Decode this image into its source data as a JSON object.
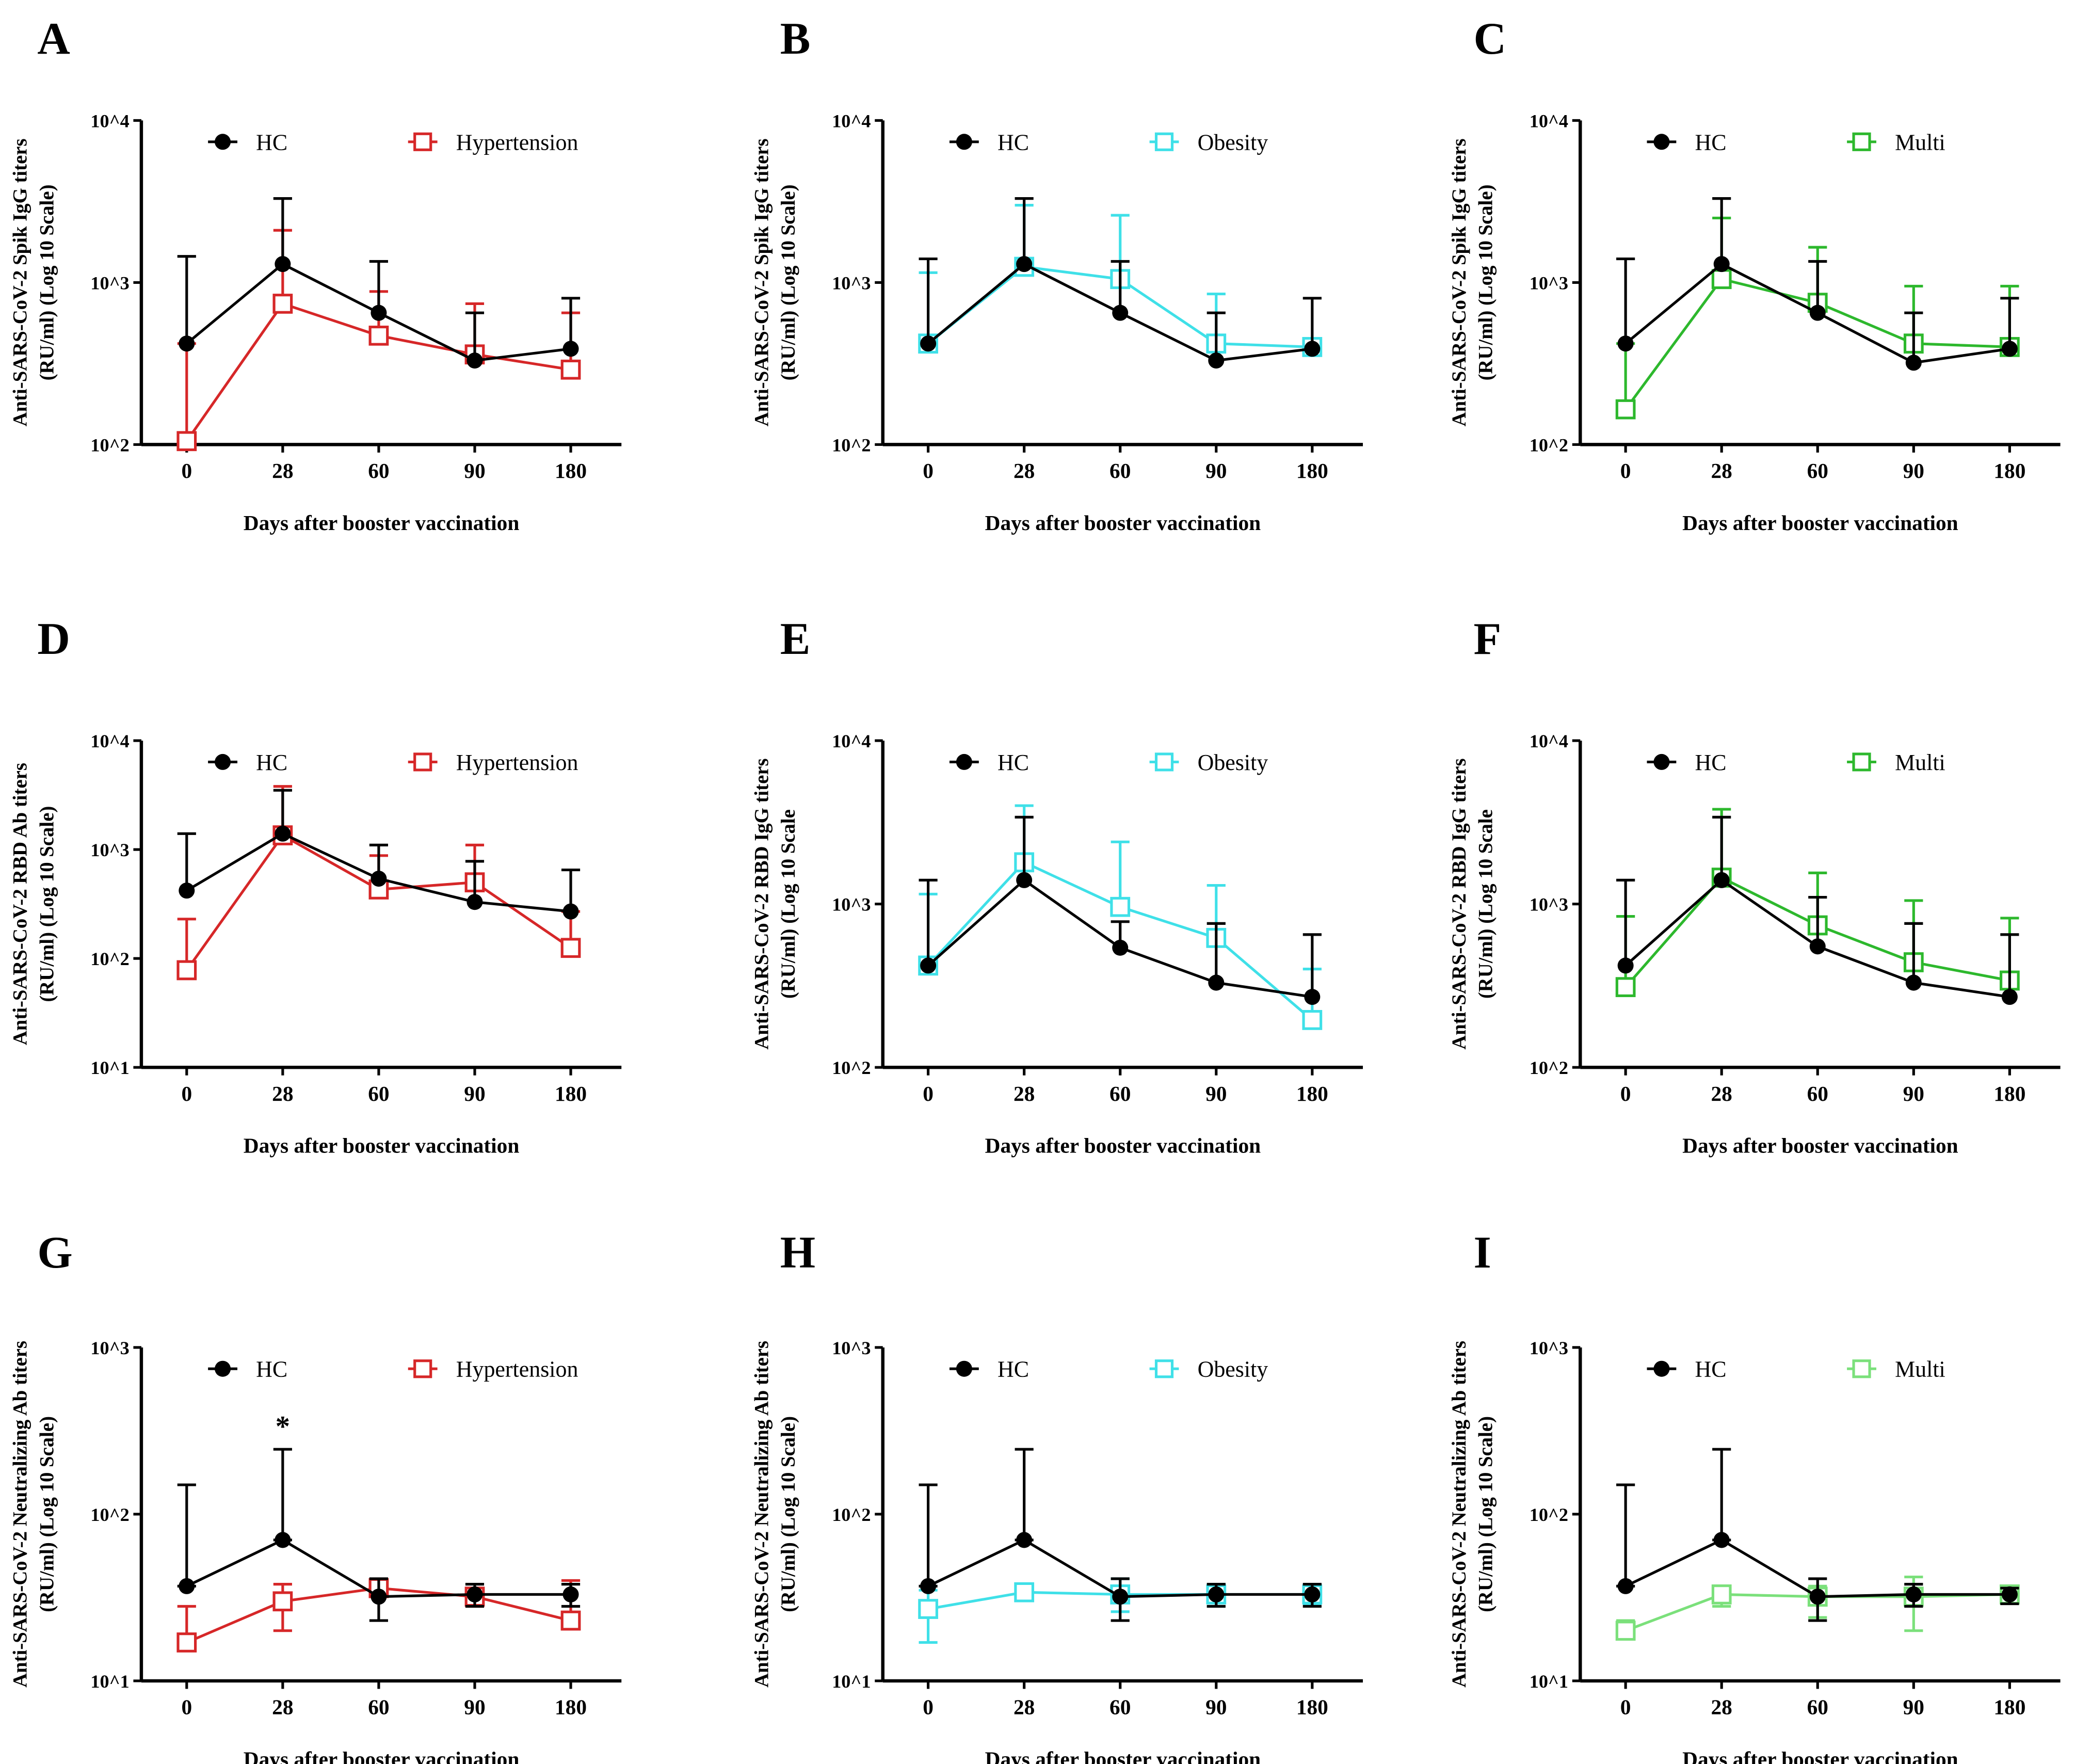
{
  "chart_data": [
    {
      "panel": "A",
      "type": "line",
      "y_scale": "log",
      "ylim": [
        100,
        10000
      ],
      "ytick_labels": [
        "10^2",
        "10^3",
        "10^4"
      ],
      "categories": [
        "0",
        "28",
        "60",
        "90",
        "180"
      ],
      "xlabel": "Days after booster vaccination",
      "ylabel": [
        "Anti-SARS-CoV-2 Spik IgG titers",
        "(RU/ml) (Log 10 Scale)"
      ],
      "legend": "top",
      "series": [
        {
          "name": "HC",
          "marker": "circle",
          "color": "#000000",
          "values": [
            420,
            1300,
            650,
            330,
            390
          ],
          "err_upper": [
            1450,
            3300,
            1350,
            650,
            800
          ]
        },
        {
          "name": "Hypertension",
          "marker": "open-square",
          "color": "#d62728",
          "values": [
            105,
            740,
            470,
            360,
            290
          ],
          "err_upper": [
            420,
            2100,
            880,
            740,
            650
          ]
        }
      ]
    },
    {
      "panel": "B",
      "type": "line",
      "y_scale": "log",
      "ylim": [
        100,
        10000
      ],
      "ytick_labels": [
        "10^2",
        "10^3",
        "10^4"
      ],
      "categories": [
        "0",
        "28",
        "60",
        "90",
        "180"
      ],
      "xlabel": "Days after booster vaccination",
      "ylabel": [
        "Anti-SARS-CoV-2 Spik IgG titers",
        "(RU/ml) (Log 10 Scale)"
      ],
      "legend": "top",
      "series": [
        {
          "name": "HC",
          "marker": "circle",
          "color": "#000000",
          "values": [
            420,
            1300,
            650,
            330,
            390
          ],
          "err_upper": [
            1400,
            3300,
            1350,
            650,
            800
          ]
        },
        {
          "name": "Obesity",
          "marker": "open-square",
          "color": "#3fe0e8",
          "values": [
            420,
            1250,
            1050,
            420,
            400
          ],
          "err_upper": [
            1150,
            3000,
            2600,
            850,
            420
          ]
        }
      ]
    },
    {
      "panel": "C",
      "type": "line",
      "y_scale": "log",
      "ylim": [
        100,
        10000
      ],
      "ytick_labels": [
        "10^2",
        "10^3",
        "10^4"
      ],
      "categories": [
        "0",
        "28",
        "60",
        "90",
        "180"
      ],
      "xlabel": "Days after booster vaccination",
      "ylabel": [
        "Anti-SARS-CoV-2 Spik IgG titers",
        "(RU/ml) (Log 10 Scale)"
      ],
      "legend": "top",
      "series": [
        {
          "name": "HC",
          "marker": "circle",
          "color": "#000000",
          "values": [
            420,
            1300,
            650,
            320,
            390
          ],
          "err_upper": [
            1400,
            3300,
            1350,
            650,
            800
          ]
        },
        {
          "name": "Multi",
          "marker": "open-square",
          "color": "#2db82d",
          "values": [
            165,
            1050,
            750,
            420,
            400
          ],
          "err_upper": [
            420,
            2500,
            1650,
            950,
            950
          ]
        }
      ]
    },
    {
      "panel": "D",
      "type": "line",
      "y_scale": "log",
      "ylim": [
        10,
        10000
      ],
      "ytick_labels": [
        "10^1",
        "10^2",
        "10^3",
        "10^4"
      ],
      "categories": [
        "0",
        "28",
        "60",
        "90",
        "180"
      ],
      "xlabel": "Days after booster vaccination",
      "ylabel": [
        "Anti-SARS-CoV-2 RBD Ab titers",
        "(RU/ml) (Log 10 Scale)"
      ],
      "legend": "top",
      "series": [
        {
          "name": "HC",
          "marker": "circle",
          "color": "#000000",
          "values": [
            420,
            1400,
            540,
            330,
            270
          ],
          "err_upper": [
            1400,
            3500,
            1100,
            780,
            650
          ]
        },
        {
          "name": "Hypertension",
          "marker": "open-square",
          "color": "#d62728",
          "values": [
            78,
            1350,
            430,
            500,
            125
          ],
          "err_upper": [
            230,
            3800,
            880,
            1100,
            270
          ]
        }
      ]
    },
    {
      "panel": "E",
      "type": "line",
      "y_scale": "log",
      "ylim": [
        100,
        10000
      ],
      "ytick_labels": [
        "10^2",
        "10^3",
        "10^4"
      ],
      "categories": [
        "0",
        "28",
        "60",
        "90",
        "180"
      ],
      "xlabel": "Days after booster vaccination",
      "ylabel": [
        "Anti-SARS-CoV-2 RBD IgG titers",
        "(RU/ml) (Log 10 Scale"
      ],
      "legend": "top",
      "series": [
        {
          "name": "HC",
          "marker": "circle",
          "color": "#000000",
          "values": [
            420,
            1400,
            540,
            330,
            270
          ],
          "err_upper": [
            1400,
            3400,
            780,
            760,
            650
          ]
        },
        {
          "name": "Obesity",
          "marker": "open-square",
          "color": "#3fe0e8",
          "values": [
            420,
            1800,
            960,
            620,
            195
          ],
          "err_upper": [
            1150,
            4000,
            2400,
            1300,
            400
          ]
        }
      ]
    },
    {
      "panel": "F",
      "type": "line",
      "y_scale": "log",
      "ylim": [
        100,
        10000
      ],
      "ytick_labels": [
        "10^2",
        "10^3",
        "10^4"
      ],
      "categories": [
        "0",
        "28",
        "60",
        "90",
        "180"
      ],
      "xlabel": "Days after booster vaccination",
      "ylabel": [
        "Anti-SARS-CoV-2 RBD IgG titers",
        "(RU/ml) (Log 10 Scale"
      ],
      "legend": "top",
      "series": [
        {
          "name": "HC",
          "marker": "circle",
          "color": "#000000",
          "values": [
            420,
            1400,
            550,
            330,
            270
          ],
          "err_upper": [
            1400,
            3400,
            1100,
            760,
            650
          ]
        },
        {
          "name": "Multi",
          "marker": "open-square",
          "color": "#2db82d",
          "values": [
            310,
            1450,
            740,
            440,
            340
          ],
          "err_upper": [
            840,
            3800,
            1550,
            1050,
            820
          ]
        }
      ]
    },
    {
      "panel": "G",
      "type": "line",
      "y_scale": "log",
      "ylim": [
        10,
        1000
      ],
      "ytick_labels": [
        "10^1",
        "10^2",
        "10^3"
      ],
      "categories": [
        "0",
        "28",
        "60",
        "90",
        "180"
      ],
      "xlabel": "Days after booster vaccination",
      "ylabel": [
        "Anti-SARS-CoV-2 Neutralizing Ab titers",
        "(RU/ml) (Log 10 Scale)"
      ],
      "legend": "top",
      "annotations": [
        {
          "text": "*",
          "category": "28"
        }
      ],
      "series": [
        {
          "name": "HC",
          "marker": "circle",
          "color": "#000000",
          "values": [
            37,
            70,
            32,
            33,
            33
          ],
          "err_upper": [
            150,
            245,
            41,
            38,
            38
          ],
          "err_lower": [
            37,
            70,
            23,
            28,
            28
          ]
        },
        {
          "name": "Hypertension",
          "marker": "open-square",
          "color": "#d62728",
          "values": [
            17,
            30,
            36,
            32,
            23
          ],
          "err_upper": [
            28,
            38,
            40,
            36,
            40
          ],
          "err_lower": [
            17,
            20,
            36,
            28,
            23
          ]
        }
      ]
    },
    {
      "panel": "H",
      "type": "line",
      "y_scale": "log",
      "ylim": [
        10,
        1000
      ],
      "ytick_labels": [
        "10^1",
        "10^2",
        "10^3"
      ],
      "categories": [
        "0",
        "28",
        "60",
        "90",
        "180"
      ],
      "xlabel": "Days after booster vaccination",
      "ylabel": [
        "Anti-SARS-CoV-2 Neutralizing Ab titers",
        "(RU/ml) (Log 10 Scale)"
      ],
      "legend": "top",
      "series": [
        {
          "name": "HC",
          "marker": "circle",
          "color": "#000000",
          "values": [
            37,
            70,
            32,
            33,
            33
          ],
          "err_upper": [
            150,
            245,
            41,
            38,
            38
          ],
          "err_lower": [
            37,
            70,
            23,
            28,
            28
          ]
        },
        {
          "name": "Obesity",
          "marker": "open-square",
          "color": "#3fe0e8",
          "values": [
            27,
            34,
            33,
            33,
            33
          ],
          "err_upper": [
            35,
            36,
            41,
            38,
            37
          ],
          "err_lower": [
            17,
            34,
            26,
            28,
            29
          ]
        }
      ]
    },
    {
      "panel": "I",
      "type": "line",
      "y_scale": "log",
      "ylim": [
        10,
        1000
      ],
      "ytick_labels": [
        "10^1",
        "10^2",
        "10^3"
      ],
      "categories": [
        "0",
        "28",
        "60",
        "90",
        "180"
      ],
      "xlabel": "Days after booster vaccination",
      "ylabel": [
        "Anti-SARS-CoV-2 Neutralizing Ab titers",
        "(RU/ml) (Log 10 Scale)"
      ],
      "legend": "top",
      "series": [
        {
          "name": "HC",
          "marker": "circle",
          "color": "#000000",
          "values": [
            37,
            70,
            32,
            33,
            33
          ],
          "err_upper": [
            150,
            245,
            41,
            38,
            36
          ],
          "err_lower": [
            37,
            70,
            23,
            28,
            29
          ]
        },
        {
          "name": "Multi",
          "marker": "open-square",
          "color": "#7be07b",
          "values": [
            20,
            33,
            32,
            32,
            33
          ],
          "err_upper": [
            23,
            37,
            37,
            42,
            36
          ],
          "err_lower": [
            20,
            28,
            24,
            20,
            30
          ]
        }
      ]
    }
  ]
}
